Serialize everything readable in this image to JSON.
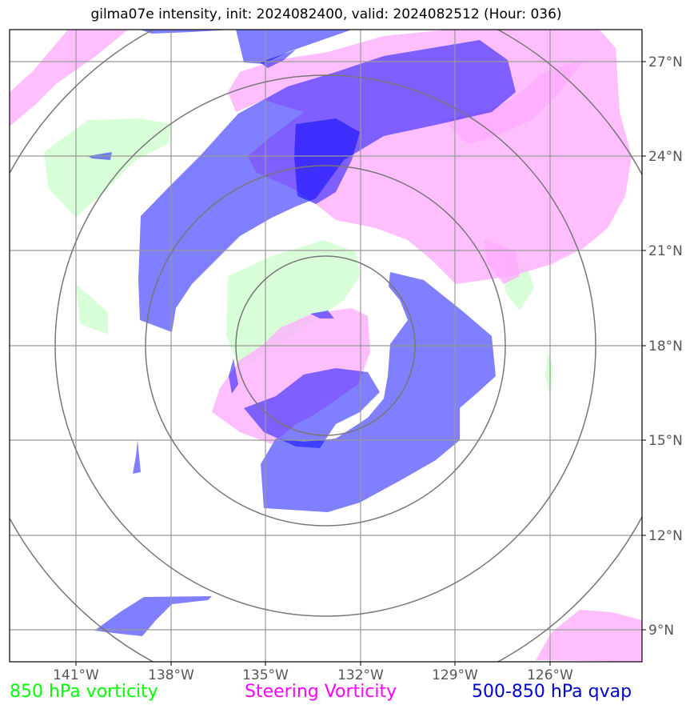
{
  "title": "gilma07e intensity, init: 2024082400, valid: 2024082512 (Hour: 036)",
  "legend": [
    {
      "label": "850 hPa vorticity",
      "color": "#00ff00"
    },
    {
      "label": "Steering Vorticity",
      "color": "#ff00ff"
    },
    {
      "label": "500-850 hPa qvap",
      "color": "#0000cc"
    }
  ],
  "map": {
    "lon_ticks": [
      "141°W",
      "138°W",
      "135°W",
      "132°W",
      "129°W",
      "126°W"
    ],
    "lat_ticks": [
      "27°N",
      "24°N",
      "21°N",
      "18°N",
      "15°N",
      "12°N",
      "9°N"
    ]
  },
  "layer_colors": {
    "vorticity_850": "#ccffcc",
    "steering_vorticity": "#ffaaff",
    "qvap": "#0000ff"
  }
}
